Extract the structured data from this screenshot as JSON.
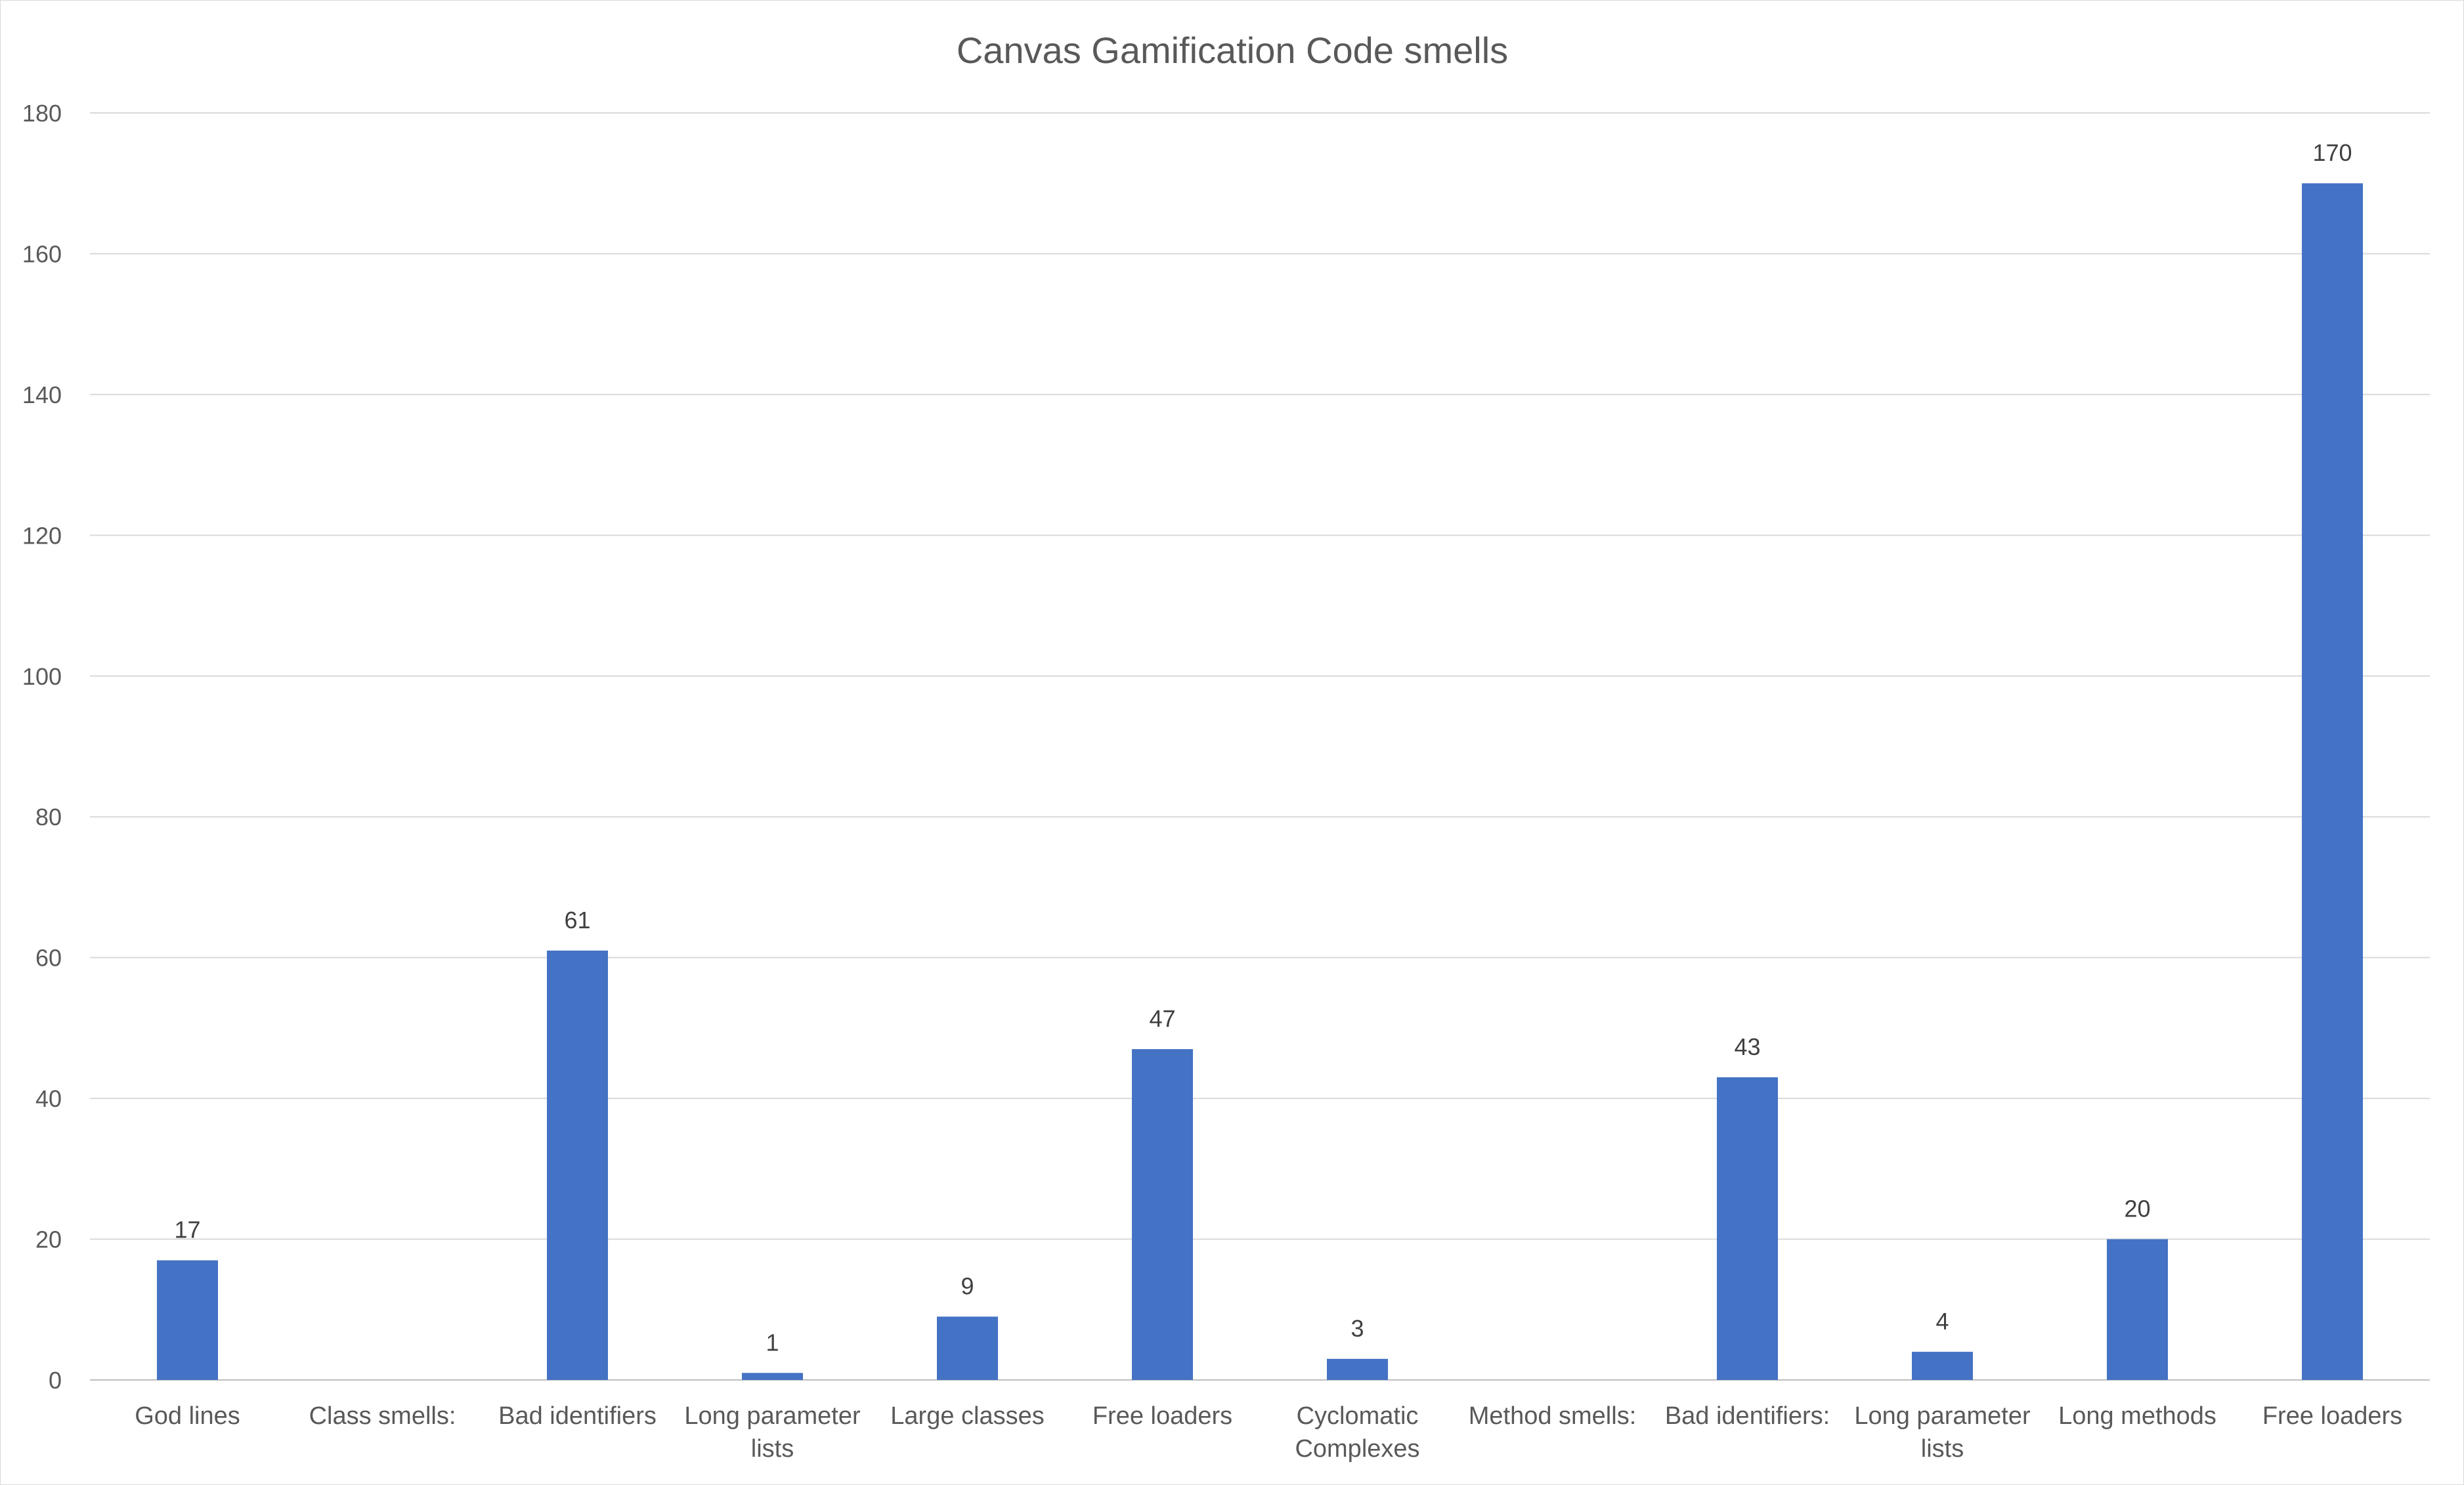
{
  "chart_data": {
    "type": "bar",
    "title": "Canvas Gamification Code smells",
    "xlabel": "",
    "ylabel": "",
    "ylim": [
      0,
      180
    ],
    "yticks": [
      0,
      20,
      40,
      60,
      80,
      100,
      120,
      140,
      160,
      180
    ],
    "grid": true,
    "legend": "none",
    "bar_color": "#4472C4",
    "categories": [
      [
        "God lines"
      ],
      [
        "Class smells:"
      ],
      [
        "Bad identifiers"
      ],
      [
        "Long parameter",
        "lists"
      ],
      [
        "Large classes"
      ],
      [
        "Free loaders"
      ],
      [
        "Cyclomatic",
        "Complexes"
      ],
      [
        "Method smells:"
      ],
      [
        "Bad identifiers:"
      ],
      [
        "Long parameter",
        "lists"
      ],
      [
        "Long methods"
      ],
      [
        "Free loaders"
      ]
    ],
    "values": [
      17,
      null,
      61,
      1,
      9,
      47,
      3,
      null,
      43,
      4,
      20,
      170
    ],
    "data_labels": [
      "17",
      "",
      "61",
      "1",
      "9",
      "47",
      "3",
      "",
      "43",
      "4",
      "20",
      "170"
    ]
  }
}
